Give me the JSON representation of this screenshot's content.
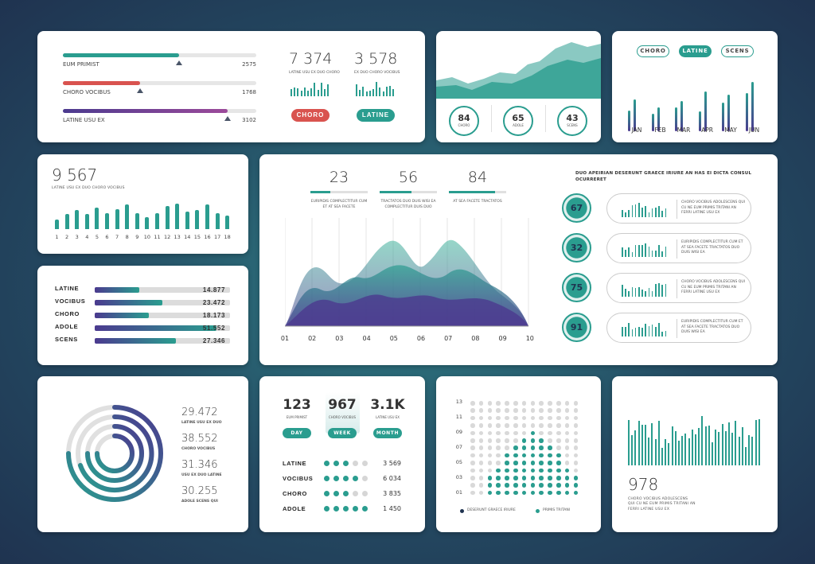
{
  "colors": {
    "teal": "#2a9d8f",
    "purple": "#4b3a8f",
    "red": "#d9534f",
    "grey": "#d6d6d6"
  },
  "panel_sliders": {
    "rows": [
      {
        "label": "EUM PRIMIST",
        "value": "2575",
        "fill": 0.6
      },
      {
        "label": "CHORO VOCIBUS",
        "value": "1768",
        "fill": 0.4
      },
      {
        "label": "LATINE USU EX",
        "value": "3102",
        "fill": 0.85
      }
    ],
    "stats": [
      {
        "number": "7 374",
        "caption": "LATINE USU EX DUO CHORO",
        "button": "CHORO"
      },
      {
        "number": "3 578",
        "caption": "EX DUO CHORO VOCIBUS",
        "button": "LATINE"
      }
    ]
  },
  "panel_area": {
    "circles": [
      {
        "number": "84",
        "label": "CHORO"
      },
      {
        "number": "65",
        "label": "ADOLE"
      },
      {
        "number": "43",
        "label": "SCENS"
      }
    ]
  },
  "panel_monthly": {
    "tabs": [
      "CHORO",
      "LATINE",
      "SCENS"
    ],
    "active_tab": "LATINE",
    "months": [
      "JAN",
      "FEB",
      "MAR",
      "APR",
      "MAY",
      "JUN"
    ]
  },
  "panel_count": {
    "number": "9 567",
    "caption": "LATINE USU EX DUO CHORO VOCIBUS",
    "x_labels": [
      "1",
      "2",
      "3",
      "4",
      "5",
      "6",
      "7",
      "8",
      "9",
      "10",
      "11",
      "12",
      "13",
      "14",
      "15",
      "16",
      "17",
      "18"
    ],
    "values": [
      0.35,
      0.55,
      0.7,
      0.55,
      0.8,
      0.6,
      0.75,
      0.9,
      0.6,
      0.45,
      0.6,
      0.85,
      0.95,
      0.65,
      0.7,
      0.9,
      0.6,
      0.5
    ]
  },
  "panel_hbars": {
    "rows": [
      {
        "label": "LATINE",
        "value": "14.877",
        "fill": 0.33
      },
      {
        "label": "VOCIBUS",
        "value": "23.472",
        "fill": 0.5
      },
      {
        "label": "CHORO",
        "value": "18.173",
        "fill": 0.4
      },
      {
        "label": "ADOLE",
        "value": "51.552",
        "fill": 0.9
      },
      {
        "label": "SCENS",
        "value": "27.346",
        "fill": 0.6
      }
    ]
  },
  "panel_main": {
    "stats": [
      {
        "number": "23",
        "caption": "EURIPIDIS COMPLECTITUR CUM ET AT SEA FACETE"
      },
      {
        "number": "56",
        "caption": "TRACTATOS DUO DUIS WISI EA COMPLECTITUR DUIS DUO"
      },
      {
        "number": "84",
        "caption": "AT SEA FACETE TRACTATOS"
      }
    ],
    "x_labels": [
      "01",
      "02",
      "03",
      "04",
      "05",
      "06",
      "07",
      "08",
      "09",
      "10"
    ],
    "heading": "DUO APEIRIAN DESERUNT GRAECE IRIURE AN HAS EI DICTA CONSUL OCURRERET",
    "items": [
      {
        "number": "67",
        "text": "CHORO VOCIBUS ADOLESCENS QUI CU NE EUM PRIMIS TRITANI AN FERRI LATINE USU EX"
      },
      {
        "number": "32",
        "text": "EURIPIDIS COMPLECTITUR CUM ET AT SEA FACETE TRACTATOS DUO DUIS WISI EA"
      },
      {
        "number": "75",
        "text": "CHORO VOCIBUS ADOLESCENS QUI CU NE EUM PRIMIS TRITANI AN FERRI LATINE USU EX"
      },
      {
        "number": "91",
        "text": "EURIPIDIS COMPLECTITUR CUM ET AT SEA FACETE TRACTATOS DUO DUIS WISI EA"
      }
    ]
  },
  "panel_radial": {
    "rows": [
      {
        "number": "29.472",
        "caption": "LATINE USU EX DUO"
      },
      {
        "number": "38.552",
        "caption": "CHORO VOCIBUS"
      },
      {
        "number": "31.346",
        "caption": "USU EX DUO LATINE"
      },
      {
        "number": "30.255",
        "caption": "ADOLE SCENS QUI"
      }
    ]
  },
  "panel_period": {
    "stats": [
      {
        "number": "123",
        "caption": "EUM PRIMIST",
        "button": "DAY"
      },
      {
        "number": "967",
        "caption": "CHORO VOCIBUS",
        "button": "WEEK"
      },
      {
        "number": "3.1K",
        "caption": "LATINE USU EX",
        "button": "MONTH"
      }
    ],
    "rows": [
      {
        "label": "LATINE",
        "value": "3 569",
        "dots": 3
      },
      {
        "label": "VOCIBUS",
        "value": "6 034",
        "dots": 4
      },
      {
        "label": "CHORO",
        "value": "3 835",
        "dots": 3
      },
      {
        "label": "ADOLE",
        "value": "1 450",
        "dots": 5
      }
    ]
  },
  "panel_dots": {
    "y_labels": [
      "13",
      "11",
      "09",
      "07",
      "05",
      "03",
      "01"
    ],
    "legend": [
      "DESERUNT GRAECE IRIURE",
      "PRIMIS TRITANI"
    ]
  },
  "panel_final": {
    "number": "978",
    "caption": "CHORO VOCIBUS ADOLESCENS QUI CU NE EUM PRIMIS TRITANI AN FERRI LATINE USU EX"
  }
}
